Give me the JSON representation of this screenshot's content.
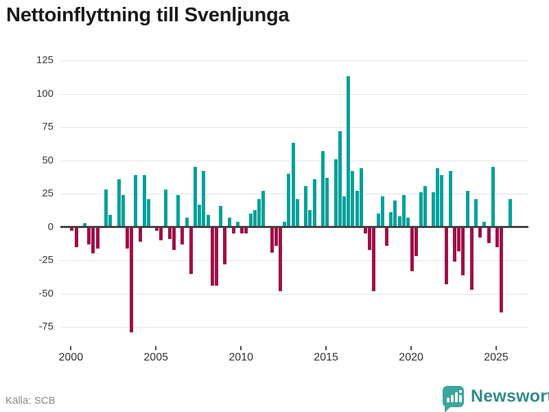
{
  "title": "Nettoinflyttning till Svenljunga",
  "source": {
    "label": "Källa: SCB"
  },
  "branding": {
    "name": "Newsworthy",
    "logo_icon": "newsworthy-pin-barchart-icon"
  },
  "colors": {
    "positive_bar": "#00a19a",
    "negative_bar": "#a00e48",
    "grid": "#e3e3e3",
    "zero_line": "#424242",
    "title_text": "#1a1a1a",
    "axis_text": "#383838",
    "source_text": "#878787",
    "brand_badge": "#3aa69c",
    "brand_text": "#2f8c87",
    "background": "#ffffff"
  },
  "chart_data": {
    "type": "bar",
    "title": "Nettoinflyttning till Svenljunga",
    "frequency": "quarterly",
    "start_period": "2000Q1",
    "end_period": "2025Q4",
    "x_tick_labels": [
      "2000",
      "2005",
      "2010",
      "2015",
      "2020",
      "2025"
    ],
    "y_tick_labels": [
      "125",
      "100",
      "75",
      "50",
      "25",
      "0",
      "-25",
      "-50",
      "-75"
    ],
    "y_ticks": [
      125,
      100,
      75,
      50,
      25,
      0,
      -25,
      -50,
      -75
    ],
    "ylim": [
      -85,
      135
    ],
    "grid": "horizontal",
    "legend": "none",
    "values": [
      -3,
      -15,
      1,
      3,
      -13,
      -20,
      -16,
      1,
      28,
      9,
      0,
      36,
      24,
      -16,
      -79,
      39,
      -11,
      39,
      21,
      1,
      -3,
      -10,
      28,
      -9,
      -17,
      24,
      -13,
      7,
      -35,
      45,
      17,
      42,
      9,
      -44,
      -44,
      16,
      -28,
      7,
      -5,
      4,
      -5,
      -5,
      10,
      13,
      21,
      27,
      0,
      -19,
      -14,
      -48,
      4,
      40,
      63,
      21,
      0,
      31,
      13,
      36,
      0,
      57,
      37,
      0,
      51,
      72,
      23,
      113,
      42,
      27,
      44,
      -5,
      -17,
      -48,
      10,
      23,
      -14,
      11,
      20,
      8,
      24,
      7,
      -33,
      -22,
      26,
      31,
      0,
      26,
      44,
      39,
      -43,
      42,
      -26,
      -18,
      -36,
      27,
      -47,
      21,
      -8,
      4,
      -12,
      45,
      -15,
      -64,
      0,
      21
    ]
  }
}
